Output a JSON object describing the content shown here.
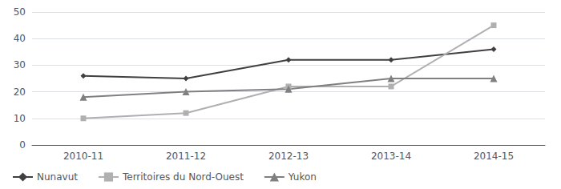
{
  "chart_data": {
    "type": "line",
    "categories": [
      "2010-11",
      "2011-12",
      "2012-13",
      "2013-14",
      "2014-15"
    ],
    "series": [
      {
        "name": "Nunavut",
        "color": "#404040",
        "marker": "diamond",
        "values": [
          26,
          25,
          32,
          32,
          36
        ]
      },
      {
        "name": "Territoires du Nord-Ouest",
        "color": "#b0b0b0",
        "marker": "square",
        "values": [
          10,
          12,
          22,
          22,
          45
        ]
      },
      {
        "name": "Yukon",
        "color": "#808080",
        "marker": "triangle",
        "values": [
          18,
          20,
          21,
          25,
          25
        ]
      }
    ],
    "ylim": [
      0,
      50
    ],
    "yticks": [
      0,
      10,
      20,
      30,
      40,
      50
    ],
    "grid": true,
    "legend": "lower left"
  }
}
